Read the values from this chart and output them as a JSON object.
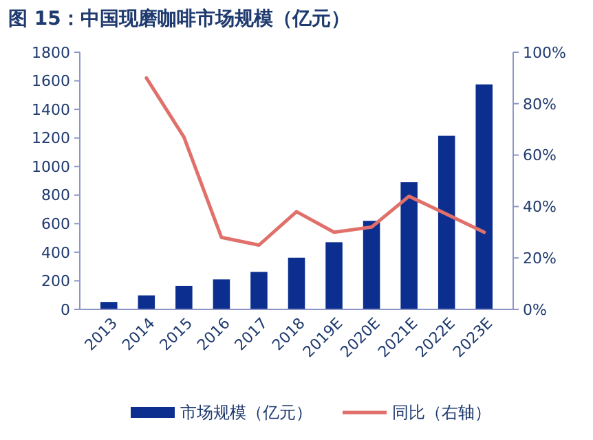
{
  "chart_data": {
    "type": "bar",
    "title": "图 15：中国现磨咖啡市场规模（亿元）",
    "categories": [
      "2013",
      "2014",
      "2015",
      "2016",
      "2017",
      "2018",
      "2019E",
      "2020E",
      "2021E",
      "2022E",
      "2023E"
    ],
    "series": [
      {
        "name": "市场规模（亿元）",
        "color": "#0c2f8f",
        "values": [
          52,
          98,
          164,
          210,
          262,
          362,
          470,
          620,
          890,
          1215,
          1575
        ]
      },
      {
        "name": "同比（右轴）",
        "type": "line",
        "axis": "y2",
        "color": "#e0706a",
        "values": [
          null,
          90,
          67,
          28,
          25,
          38,
          30,
          32,
          44,
          37,
          30
        ]
      }
    ],
    "ylim": [
      0,
      1800
    ],
    "yticks": [
      0,
      200,
      400,
      600,
      800,
      1000,
      1200,
      1400,
      1600,
      1800
    ],
    "y2lim": [
      0,
      100
    ],
    "y2ticks": [
      {
        "value": 0,
        "label": "0%"
      },
      {
        "value": 20,
        "label": "20%"
      },
      {
        "value": 40,
        "label": "40%"
      },
      {
        "value": 60,
        "label": "60%"
      },
      {
        "value": 80,
        "label": "80%"
      },
      {
        "value": 100,
        "label": "100%"
      }
    ],
    "legend": "bottom",
    "grid": false
  }
}
